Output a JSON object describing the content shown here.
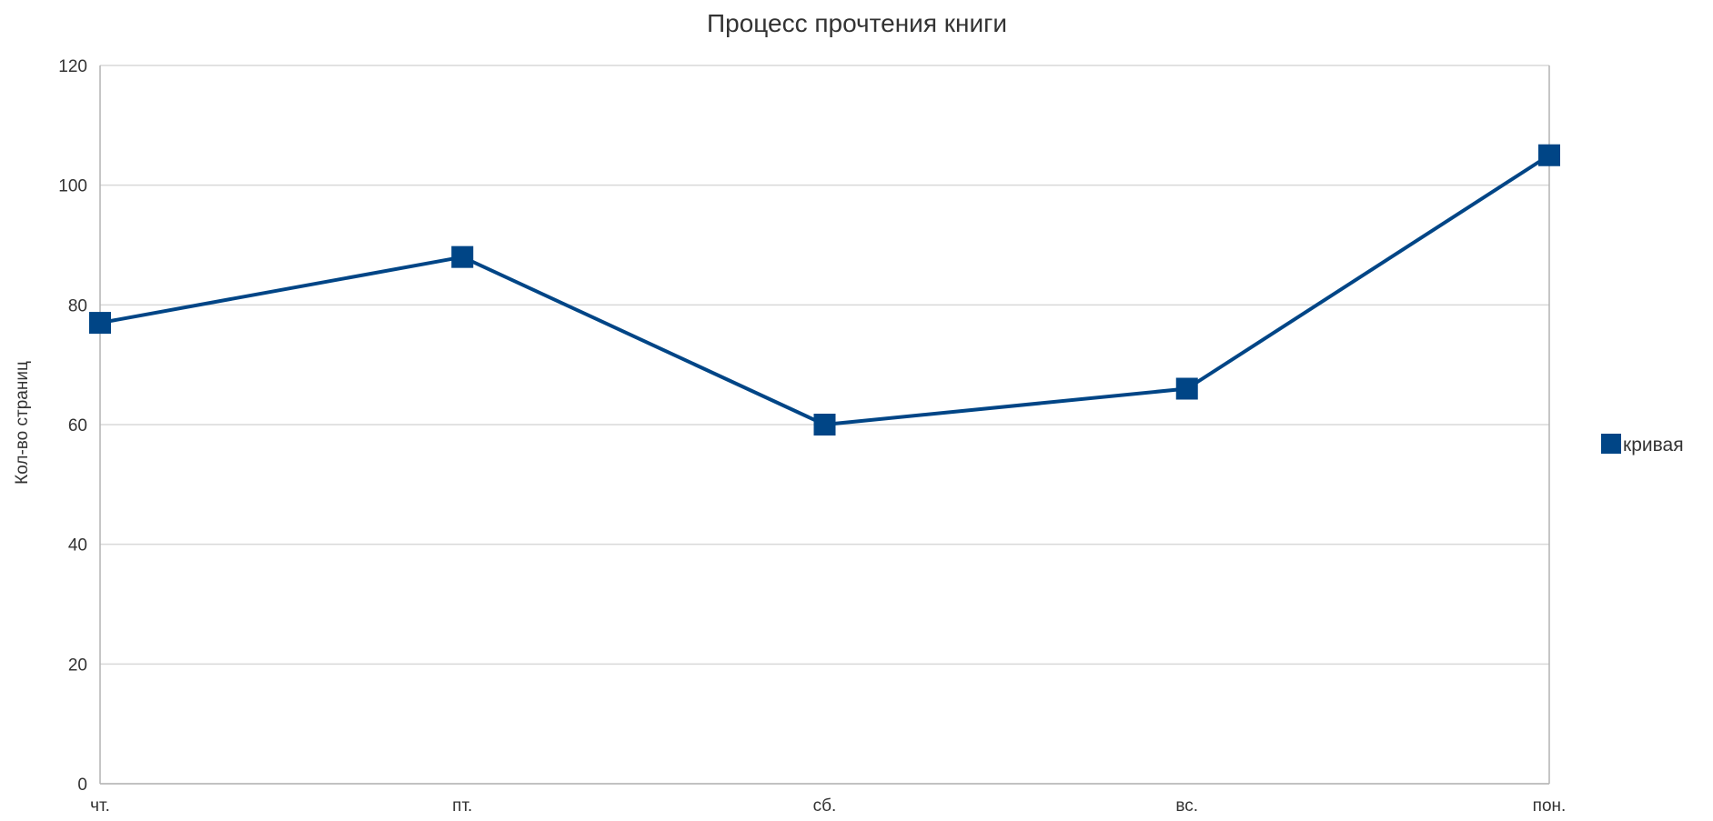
{
  "chart_data": {
    "type": "line",
    "title": "Процесс прочтения книги",
    "xlabel": "",
    "ylabel": "Кол-во страниц",
    "categories": [
      "чт.",
      "пт.",
      "сб.",
      "вс.",
      "пон."
    ],
    "series": [
      {
        "name": "кривая",
        "values": [
          77,
          88,
          60,
          66,
          105
        ],
        "color": "#004586"
      }
    ],
    "ylim": [
      0,
      120
    ],
    "yticks": [
      0,
      20,
      40,
      60,
      80,
      100,
      120
    ],
    "grid": true,
    "legend_position": "right",
    "colors": {
      "gridline": "#d9d9d9",
      "axis": "#b3b3b3",
      "text": "#333333"
    }
  }
}
